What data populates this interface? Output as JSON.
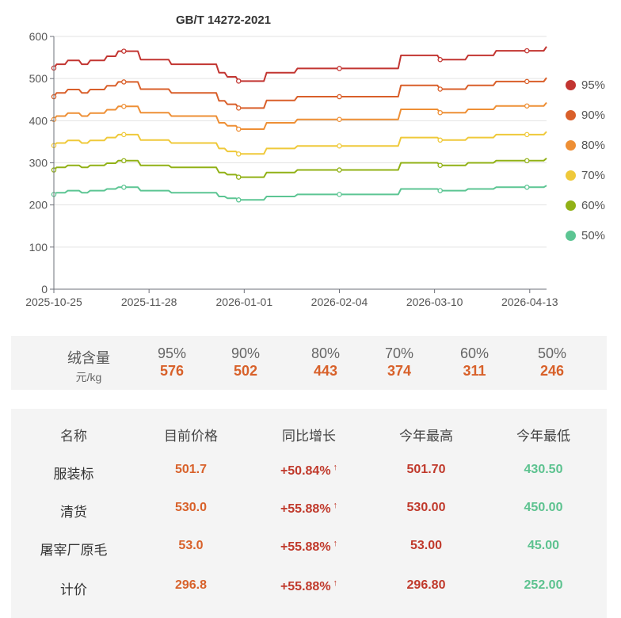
{
  "chart_data": {
    "type": "line",
    "title": "GB/T 14272-2021",
    "xlabel": "",
    "ylabel": "",
    "ylim": [
      0,
      600
    ],
    "yticks": [
      0,
      100,
      200,
      300,
      400,
      500,
      600
    ],
    "x_range": [
      "2025-10-25",
      "2026-04-19"
    ],
    "xticks": [
      "2025-10-25",
      "2025-11-28",
      "2026-01-01",
      "2026-02-04",
      "2026-03-10",
      "2026-04-13"
    ],
    "grid": true,
    "legend_position": "right",
    "series": [
      {
        "name": "95%",
        "color": "#c23531",
        "points": [
          [
            "2025-10-25",
            525
          ],
          [
            "2025-10-26",
            534
          ],
          [
            "2025-10-29",
            534
          ],
          [
            "2025-10-30",
            543
          ],
          [
            "2025-11-03",
            543
          ],
          [
            "2025-11-04",
            534
          ],
          [
            "2025-11-06",
            534
          ],
          [
            "2025-11-07",
            543
          ],
          [
            "2025-11-12",
            543
          ],
          [
            "2025-11-13",
            553
          ],
          [
            "2025-11-16",
            553
          ],
          [
            "2025-11-17",
            565
          ],
          [
            "2025-11-24",
            565
          ],
          [
            "2025-11-25",
            545
          ],
          [
            "2025-12-05",
            545
          ],
          [
            "2025-12-06",
            534
          ],
          [
            "2025-12-22",
            534
          ],
          [
            "2025-12-23",
            514
          ],
          [
            "2025-12-25",
            514
          ],
          [
            "2025-12-26",
            504
          ],
          [
            "2025-12-29",
            504
          ],
          [
            "2025-12-30",
            494
          ],
          [
            "2026-01-08",
            494
          ],
          [
            "2026-01-09",
            514
          ],
          [
            "2026-01-19",
            514
          ],
          [
            "2026-01-20",
            524
          ],
          [
            "2026-02-25",
            524
          ],
          [
            "2026-02-26",
            555
          ],
          [
            "2026-03-11",
            555
          ],
          [
            "2026-03-12",
            545
          ],
          [
            "2026-03-21",
            545
          ],
          [
            "2026-03-22",
            555
          ],
          [
            "2026-03-31",
            555
          ],
          [
            "2026-04-01",
            566
          ],
          [
            "2026-04-18",
            566
          ],
          [
            "2026-04-19",
            576
          ]
        ]
      },
      {
        "name": "90%",
        "color": "#d95f2a",
        "points": [
          [
            "2025-10-25",
            457
          ],
          [
            "2025-10-26",
            466
          ],
          [
            "2025-10-29",
            466
          ],
          [
            "2025-10-30",
            474
          ],
          [
            "2025-11-03",
            474
          ],
          [
            "2025-11-04",
            466
          ],
          [
            "2025-11-06",
            466
          ],
          [
            "2025-11-07",
            474
          ],
          [
            "2025-11-12",
            474
          ],
          [
            "2025-11-13",
            483
          ],
          [
            "2025-11-16",
            483
          ],
          [
            "2025-11-17",
            492
          ],
          [
            "2025-11-24",
            492
          ],
          [
            "2025-11-25",
            475
          ],
          [
            "2025-12-05",
            475
          ],
          [
            "2025-12-06",
            466
          ],
          [
            "2025-12-22",
            466
          ],
          [
            "2025-12-23",
            447
          ],
          [
            "2025-12-25",
            447
          ],
          [
            "2025-12-26",
            439
          ],
          [
            "2025-12-29",
            439
          ],
          [
            "2025-12-30",
            430
          ],
          [
            "2026-01-08",
            430
          ],
          [
            "2026-01-09",
            448
          ],
          [
            "2026-01-19",
            448
          ],
          [
            "2026-01-20",
            457
          ],
          [
            "2026-02-25",
            457
          ],
          [
            "2026-02-26",
            484
          ],
          [
            "2026-03-11",
            484
          ],
          [
            "2026-03-12",
            475
          ],
          [
            "2026-03-21",
            475
          ],
          [
            "2026-03-22",
            484
          ],
          [
            "2026-03-31",
            484
          ],
          [
            "2026-04-01",
            493
          ],
          [
            "2026-04-18",
            493
          ],
          [
            "2026-04-19",
            502
          ]
        ]
      },
      {
        "name": "80%",
        "color": "#ee8f35",
        "points": [
          [
            "2025-10-25",
            403
          ],
          [
            "2025-10-26",
            411
          ],
          [
            "2025-10-29",
            411
          ],
          [
            "2025-10-30",
            418
          ],
          [
            "2025-11-03",
            418
          ],
          [
            "2025-11-04",
            411
          ],
          [
            "2025-11-06",
            411
          ],
          [
            "2025-11-07",
            418
          ],
          [
            "2025-11-12",
            418
          ],
          [
            "2025-11-13",
            426
          ],
          [
            "2025-11-16",
            426
          ],
          [
            "2025-11-17",
            434
          ],
          [
            "2025-11-24",
            434
          ],
          [
            "2025-11-25",
            419
          ],
          [
            "2025-12-05",
            419
          ],
          [
            "2025-12-06",
            411
          ],
          [
            "2025-12-22",
            411
          ],
          [
            "2025-12-23",
            395
          ],
          [
            "2025-12-25",
            395
          ],
          [
            "2025-12-26",
            388
          ],
          [
            "2025-12-29",
            388
          ],
          [
            "2025-12-30",
            380
          ],
          [
            "2026-01-08",
            380
          ],
          [
            "2026-01-09",
            395
          ],
          [
            "2026-01-19",
            395
          ],
          [
            "2026-01-20",
            403
          ],
          [
            "2026-02-25",
            403
          ],
          [
            "2026-02-26",
            427
          ],
          [
            "2026-03-11",
            427
          ],
          [
            "2026-03-12",
            419
          ],
          [
            "2026-03-21",
            419
          ],
          [
            "2026-03-22",
            427
          ],
          [
            "2026-03-31",
            427
          ],
          [
            "2026-04-01",
            435
          ],
          [
            "2026-04-18",
            435
          ],
          [
            "2026-04-19",
            443
          ]
        ]
      },
      {
        "name": "70%",
        "color": "#efc93a",
        "points": [
          [
            "2025-10-25",
            341
          ],
          [
            "2025-10-26",
            347
          ],
          [
            "2025-10-29",
            347
          ],
          [
            "2025-10-30",
            353
          ],
          [
            "2025-11-03",
            353
          ],
          [
            "2025-11-04",
            347
          ],
          [
            "2025-11-06",
            347
          ],
          [
            "2025-11-07",
            353
          ],
          [
            "2025-11-12",
            353
          ],
          [
            "2025-11-13",
            360
          ],
          [
            "2025-11-16",
            360
          ],
          [
            "2025-11-17",
            367
          ],
          [
            "2025-11-24",
            367
          ],
          [
            "2025-11-25",
            354
          ],
          [
            "2025-12-05",
            354
          ],
          [
            "2025-12-06",
            347
          ],
          [
            "2025-12-22",
            347
          ],
          [
            "2025-12-23",
            334
          ],
          [
            "2025-12-25",
            334
          ],
          [
            "2025-12-26",
            327
          ],
          [
            "2025-12-29",
            327
          ],
          [
            "2025-12-30",
            321
          ],
          [
            "2026-01-08",
            321
          ],
          [
            "2026-01-09",
            334
          ],
          [
            "2026-01-19",
            334
          ],
          [
            "2026-01-20",
            340
          ],
          [
            "2026-02-25",
            340
          ],
          [
            "2026-02-26",
            360
          ],
          [
            "2026-03-11",
            360
          ],
          [
            "2026-03-12",
            354
          ],
          [
            "2026-03-21",
            354
          ],
          [
            "2026-03-22",
            360
          ],
          [
            "2026-03-31",
            360
          ],
          [
            "2026-04-01",
            367
          ],
          [
            "2026-04-18",
            367
          ],
          [
            "2026-04-19",
            374
          ]
        ]
      },
      {
        "name": "60%",
        "color": "#91b116",
        "points": [
          [
            "2025-10-25",
            283
          ],
          [
            "2025-10-26",
            289
          ],
          [
            "2025-10-29",
            289
          ],
          [
            "2025-10-30",
            294
          ],
          [
            "2025-11-03",
            294
          ],
          [
            "2025-11-04",
            289
          ],
          [
            "2025-11-06",
            289
          ],
          [
            "2025-11-07",
            294
          ],
          [
            "2025-11-12",
            294
          ],
          [
            "2025-11-13",
            299
          ],
          [
            "2025-11-16",
            299
          ],
          [
            "2025-11-17",
            305
          ],
          [
            "2025-11-24",
            305
          ],
          [
            "2025-11-25",
            294
          ],
          [
            "2025-12-05",
            294
          ],
          [
            "2025-12-06",
            289
          ],
          [
            "2025-12-22",
            289
          ],
          [
            "2025-12-23",
            277
          ],
          [
            "2025-12-25",
            277
          ],
          [
            "2025-12-26",
            272
          ],
          [
            "2025-12-29",
            272
          ],
          [
            "2025-12-30",
            266
          ],
          [
            "2026-01-08",
            266
          ],
          [
            "2026-01-09",
            277
          ],
          [
            "2026-01-19",
            277
          ],
          [
            "2026-01-20",
            283
          ],
          [
            "2026-02-25",
            283
          ],
          [
            "2026-02-26",
            300
          ],
          [
            "2026-03-11",
            300
          ],
          [
            "2026-03-12",
            294
          ],
          [
            "2026-03-21",
            294
          ],
          [
            "2026-03-22",
            300
          ],
          [
            "2026-03-31",
            300
          ],
          [
            "2026-04-01",
            305
          ],
          [
            "2026-04-18",
            305
          ],
          [
            "2026-04-19",
            311
          ]
        ]
      },
      {
        "name": "50%",
        "color": "#5cc593",
        "points": [
          [
            "2025-10-25",
            225
          ],
          [
            "2025-10-26",
            229
          ],
          [
            "2025-10-29",
            229
          ],
          [
            "2025-10-30",
            234
          ],
          [
            "2025-11-03",
            234
          ],
          [
            "2025-11-04",
            229
          ],
          [
            "2025-11-06",
            229
          ],
          [
            "2025-11-07",
            234
          ],
          [
            "2025-11-12",
            234
          ],
          [
            "2025-11-13",
            238
          ],
          [
            "2025-11-16",
            238
          ],
          [
            "2025-11-17",
            242
          ],
          [
            "2025-11-24",
            242
          ],
          [
            "2025-11-25",
            234
          ],
          [
            "2025-12-05",
            234
          ],
          [
            "2025-12-06",
            229
          ],
          [
            "2025-12-22",
            229
          ],
          [
            "2025-12-23",
            220
          ],
          [
            "2025-12-25",
            220
          ],
          [
            "2025-12-26",
            216
          ],
          [
            "2025-12-29",
            216
          ],
          [
            "2025-12-30",
            212
          ],
          [
            "2026-01-08",
            212
          ],
          [
            "2026-01-09",
            220
          ],
          [
            "2026-01-19",
            220
          ],
          [
            "2026-01-20",
            225
          ],
          [
            "2026-02-25",
            225
          ],
          [
            "2026-02-26",
            238
          ],
          [
            "2026-03-11",
            238
          ],
          [
            "2026-03-12",
            234
          ],
          [
            "2026-03-21",
            234
          ],
          [
            "2026-03-22",
            238
          ],
          [
            "2026-03-31",
            238
          ],
          [
            "2026-04-01",
            242
          ],
          [
            "2026-04-18",
            242
          ],
          [
            "2026-04-19",
            246
          ]
        ]
      }
    ],
    "marker_dates": [
      "2025-10-25",
      "2025-11-19",
      "2025-12-30",
      "2026-02-04",
      "2026-03-12",
      "2026-04-12"
    ]
  },
  "grade_panel": {
    "header_line1": "绒含量",
    "header_line2": "元/kg",
    "items": [
      {
        "pct": "95%",
        "value": "576"
      },
      {
        "pct": "90%",
        "value": "502"
      },
      {
        "pct": "80%",
        "value": "443"
      },
      {
        "pct": "70%",
        "value": "374"
      },
      {
        "pct": "60%",
        "value": "311"
      },
      {
        "pct": "50%",
        "value": "246"
      }
    ]
  },
  "price_table": {
    "headers": [
      "名称",
      "目前价格",
      "同比增长",
      "今年最高",
      "今年最低"
    ],
    "rows": [
      {
        "name": "服装标",
        "price": "501.7",
        "growth": "+50.84%",
        "high": "501.70",
        "low": "430.50"
      },
      {
        "name": "清货",
        "price": "530.0",
        "growth": "+55.88%",
        "high": "530.00",
        "low": "450.00"
      },
      {
        "name": "屠宰厂原毛",
        "price": "53.0",
        "growth": "+55.88%",
        "high": "53.00",
        "low": "45.00"
      },
      {
        "name": "计价",
        "price": "296.8",
        "growth": "+55.88%",
        "high": "296.80",
        "low": "252.00"
      }
    ],
    "growth_arrow": "↑"
  }
}
